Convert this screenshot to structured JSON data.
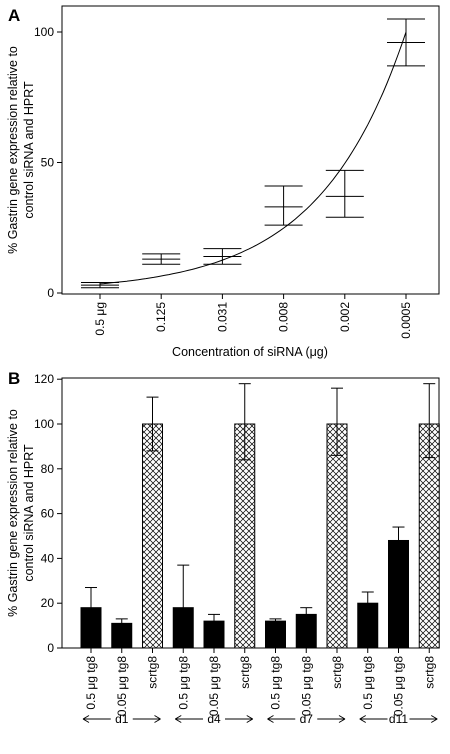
{
  "chart_data": [
    {
      "panel": "A",
      "type": "scatter",
      "xlabel_prefix": "Concentration of siRNA (",
      "xlabel_unit": "μg",
      "xlabel_suffix": ")",
      "ylabel_line1": "% Gastrin gene expression relative to",
      "ylabel_line2": "control siRNA and HPRT",
      "ylim": [
        0,
        100
      ],
      "yticks": [
        "0",
        "50",
        "100"
      ],
      "categories": [
        "0.5 μg",
        "0.125",
        "0.031",
        "0.008",
        "0.002",
        "0.0005"
      ],
      "values": [
        3,
        13,
        14,
        33,
        37,
        96
      ],
      "err_low": [
        2,
        11,
        11,
        26,
        29,
        87
      ],
      "err_high": [
        4,
        15,
        17,
        41,
        47,
        105
      ],
      "fit_curve": "exponential",
      "grid": false
    },
    {
      "panel": "B",
      "type": "bar",
      "ylabel_line1": "% Gastrin gene expression relative to",
      "ylabel_line2": "control siRNA and HPRT",
      "ylim": [
        0,
        120
      ],
      "yticks": [
        "0",
        "20",
        "40",
        "60",
        "80",
        "100",
        "120"
      ],
      "categories": [
        "0.5 μg tg8",
        "0.05 μg tg8",
        "scrtg8",
        "0.5 μg tg8",
        "0.05 μg tg8",
        "scrtg8",
        "0.5 μg tg8",
        "0.05 μg tg8",
        "scrtg8",
        "0.5 μg tg8",
        "0.05 μg tg8",
        "scrtg8"
      ],
      "values": [
        18,
        11,
        100,
        18,
        12,
        100,
        12,
        15,
        100,
        20,
        48,
        100
      ],
      "err_high": [
        27,
        13,
        112,
        37,
        15,
        118,
        13,
        18,
        116,
        25,
        54,
        118
      ],
      "err_low": [
        null,
        null,
        88,
        null,
        null,
        84,
        null,
        null,
        86,
        null,
        null,
        85
      ],
      "fill": [
        "solid",
        "solid",
        "crosshatch",
        "solid",
        "solid",
        "crosshatch",
        "solid",
        "solid",
        "crosshatch",
        "solid",
        "solid",
        "crosshatch"
      ],
      "groups": [
        {
          "label": "d1",
          "start": 0,
          "end": 2
        },
        {
          "label": "d4",
          "start": 3,
          "end": 5
        },
        {
          "label": "d7",
          "start": 6,
          "end": 8
        },
        {
          "label": "d11",
          "start": 9,
          "end": 11
        }
      ],
      "grid": false
    }
  ],
  "panel_labels": [
    "A",
    "B"
  ]
}
